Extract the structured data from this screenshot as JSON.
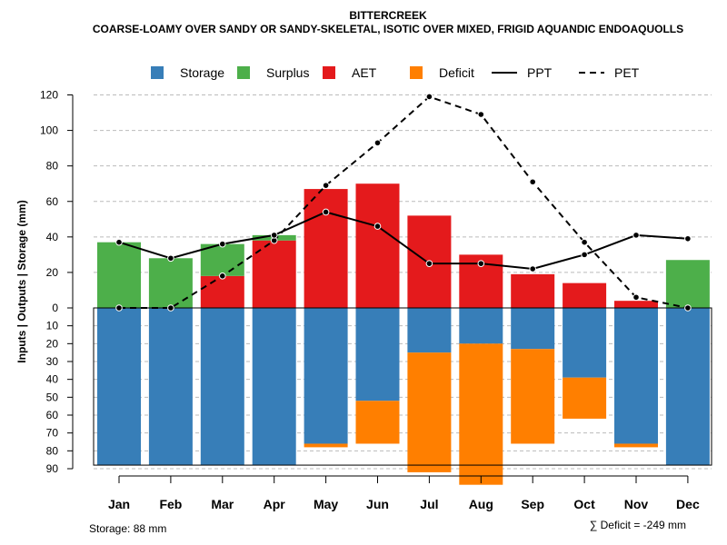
{
  "chart_data": {
    "type": "bar",
    "title": "BITTERCREEK",
    "subtitle": "COARSE-LOAMY OVER SANDY OR SANDY-SKELETAL, ISOTIC OVER MIXED, FRIGID AQUANDIC ENDOAQUOLLS",
    "ylabel": "Inputs | Outputs | Storage    (mm)",
    "categories": [
      "Jan",
      "Feb",
      "Mar",
      "Apr",
      "May",
      "Jun",
      "Jul",
      "Aug",
      "Sep",
      "Oct",
      "Nov",
      "Dec"
    ],
    "upper_ylim": [
      0,
      120
    ],
    "upper_ticks": [
      "120",
      "100",
      "80",
      "60",
      "40",
      "20",
      "0"
    ],
    "lower_ylim": [
      0,
      90
    ],
    "lower_ticks": [
      "10",
      "20",
      "30",
      "40",
      "50",
      "60",
      "70",
      "80",
      "90"
    ],
    "grid": true,
    "legend_position": "top",
    "legend": [
      {
        "key": "storage",
        "label": "Storage",
        "kind": "box"
      },
      {
        "key": "surplus",
        "label": "Surplus",
        "kind": "box"
      },
      {
        "key": "aet",
        "label": "AET",
        "kind": "box"
      },
      {
        "key": "deficit",
        "label": "Deficit",
        "kind": "box"
      },
      {
        "key": "ppt",
        "label": "PPT",
        "kind": "solid"
      },
      {
        "key": "pet",
        "label": "PET",
        "kind": "dashed"
      }
    ],
    "colors": {
      "storage": "#377EB8",
      "surplus": "#4DAF4A",
      "aet": "#E41A1C",
      "deficit": "#FF7F00",
      "ppt": "#000000",
      "pet": "#000000",
      "grid": "#BBBBBB"
    },
    "series": [
      {
        "name": "AET",
        "key": "aet",
        "values": [
          0,
          0,
          18,
          38,
          67,
          70,
          52,
          30,
          19,
          14,
          4,
          0
        ]
      },
      {
        "name": "Surplus",
        "key": "surplus",
        "values": [
          37,
          28,
          18,
          3,
          0,
          0,
          0,
          0,
          0,
          0,
          0,
          27
        ]
      },
      {
        "name": "Storage",
        "key": "storage",
        "values": [
          88,
          88,
          88,
          88,
          76,
          52,
          25,
          20,
          23,
          39,
          76,
          88
        ]
      },
      {
        "name": "Deficit",
        "key": "deficit",
        "values": [
          0,
          0,
          0,
          0,
          2,
          24,
          67,
          79,
          53,
          23,
          2,
          0
        ]
      },
      {
        "name": "PPT",
        "key": "ppt",
        "values": [
          37,
          28,
          36,
          41,
          54,
          46,
          25,
          25,
          22,
          30,
          41,
          39
        ]
      },
      {
        "name": "PET",
        "key": "pet",
        "values": [
          0,
          0,
          18,
          38,
          69,
          93,
          119,
          109,
          71,
          37,
          6,
          0
        ]
      }
    ],
    "storage_note": "Storage: 88 mm",
    "deficit_note": "∑ Deficit = -249 mm"
  }
}
